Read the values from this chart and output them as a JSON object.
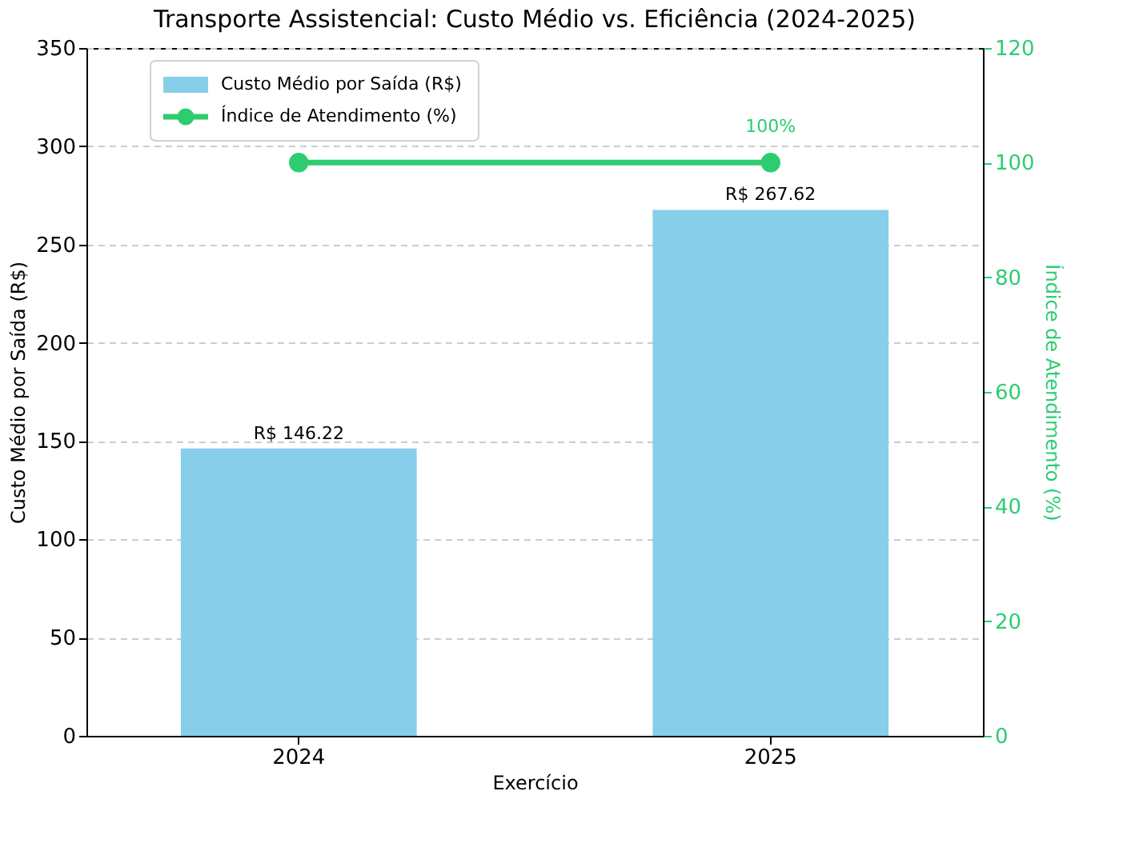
{
  "chart_data": {
    "type": "bar",
    "title": "Transporte Assistencial: Custo Médio vs. Eficiência (2024-2025)",
    "xlabel": "Exercício",
    "ylabel": "Custo Médio por Saída (R$)",
    "y2label": "Índice de Atendimento (%)",
    "categories": [
      "2024",
      "2025"
    ],
    "series": [
      {
        "name": "Custo Médio por Saída (R$)",
        "color": "#87ceeb",
        "values": [
          146.22,
          267.62
        ],
        "value_labels": [
          "R$ 146.22",
          "R$ 267.62"
        ]
      },
      {
        "name": "Índice de Atendimento (%)",
        "type": "line",
        "axis": "y2",
        "color": "#2ecc71",
        "values": [
          100,
          100
        ],
        "value_labels": [
          null,
          "100%"
        ],
        "marker": "circle",
        "line_style": "solid"
      }
    ],
    "ylim": [
      0,
      350
    ],
    "yticks": [
      0,
      50,
      100,
      150,
      200,
      250,
      300,
      350
    ],
    "y2lim": [
      0,
      120
    ],
    "y2ticks": [
      0,
      20,
      40,
      60,
      80,
      100,
      120
    ],
    "grid": "y",
    "legend": "top left"
  }
}
